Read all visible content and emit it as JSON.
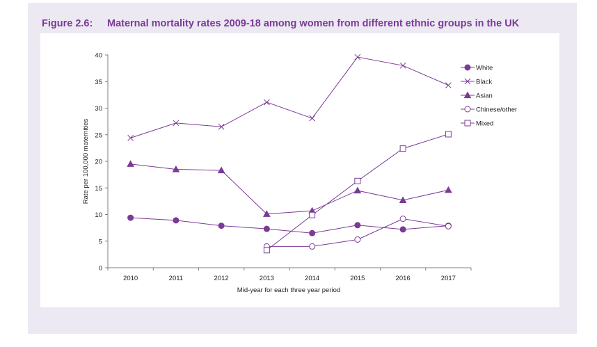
{
  "figure": {
    "number": "Figure 2.6:",
    "title": "Maternal mortality rates 2009-18 among women from different ethnic groups in the UK"
  },
  "colors": {
    "series": "#7b3a96",
    "frame": "#ece9f3",
    "title": "#7b3a96"
  },
  "chart_data": {
    "type": "line",
    "title": "",
    "xlabel": "Mid-year for each three year period",
    "ylabel": "Rate per 100,000 maternities",
    "x": [
      2010,
      2011,
      2012,
      2013,
      2014,
      2015,
      2016,
      2017
    ],
    "x_tick_labels": [
      "2010",
      "2011",
      "2012",
      "2013",
      "2014",
      "2015",
      "2016",
      "2017"
    ],
    "ylim": [
      0,
      40
    ],
    "y_ticks": [
      0,
      5,
      10,
      15,
      20,
      25,
      30,
      35,
      40
    ],
    "grid": false,
    "legend_position": "right",
    "series": [
      {
        "name": "White",
        "marker": "filled-circle",
        "values": [
          9.4,
          8.9,
          7.9,
          7.3,
          6.5,
          8.0,
          7.2,
          7.9
        ]
      },
      {
        "name": "Black",
        "marker": "cross",
        "values": [
          24.4,
          27.2,
          26.5,
          31.1,
          28.1,
          39.6,
          38.0,
          34.3
        ]
      },
      {
        "name": "Asian",
        "marker": "filled-triangle",
        "values": [
          19.5,
          18.5,
          18.3,
          10.1,
          10.7,
          14.5,
          12.7,
          14.6
        ]
      },
      {
        "name": "Chinese/other",
        "marker": "open-circle",
        "values": [
          null,
          null,
          null,
          4.0,
          4.0,
          5.3,
          9.2,
          7.8
        ]
      },
      {
        "name": "Mixed",
        "marker": "open-square",
        "values": [
          null,
          null,
          null,
          3.3,
          9.9,
          16.3,
          22.4,
          25.1
        ]
      }
    ]
  }
}
